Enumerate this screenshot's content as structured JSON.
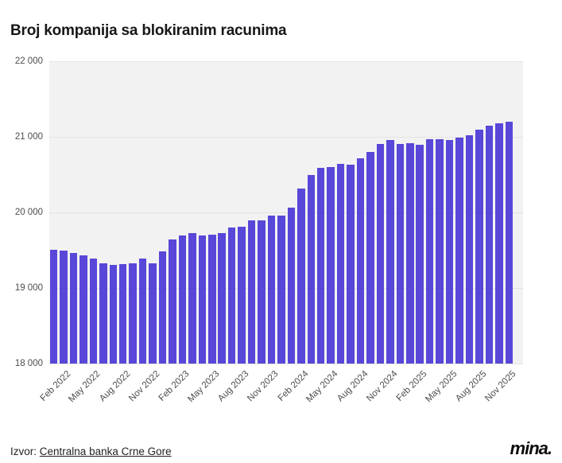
{
  "header": {
    "title": "Broj kompanija sa blokiranim racunima"
  },
  "footer": {
    "source_label": "Izvor:",
    "source_link": "Centralna banka Crne Gore",
    "logo": "mina."
  },
  "colors": {
    "bar": "#5847d8",
    "plot_bg": "#f2f2f2",
    "grid": "#e3e3e3",
    "axis_text": "#4d4d4d",
    "title_text": "#171717"
  },
  "chart_data": {
    "type": "bar",
    "title": "Broj kompanija sa blokiranim racunima",
    "xlabel": "",
    "ylabel": "",
    "ylim": [
      18000,
      22000
    ],
    "grid": true,
    "legend": "none",
    "plot_background": "#f2f2f2",
    "bar_color": "#5847d8",
    "y_ticks": [
      {
        "value": 18000,
        "label": "18 000"
      },
      {
        "value": 19000,
        "label": "19 000"
      },
      {
        "value": 20000,
        "label": "20 000"
      },
      {
        "value": 21000,
        "label": "21 000"
      },
      {
        "value": 22000,
        "label": "22 000"
      }
    ],
    "tick_indices": [
      1,
      4,
      7,
      10,
      13,
      16,
      19,
      22,
      25,
      28,
      31,
      34,
      37,
      40,
      43,
      46
    ],
    "categories": [
      "Jan 2022",
      "Feb 2022",
      "Mar 2022",
      "Apr 2022",
      "May 2022",
      "Jun 2022",
      "Jul 2022",
      "Aug 2022",
      "Sep 2022",
      "Oct 2022",
      "Nov 2022",
      "Dec 2022",
      "Jan 2023",
      "Feb 2023",
      "Mar 2023",
      "Apr 2023",
      "May 2023",
      "Jun 2023",
      "Jul 2023",
      "Aug 2023",
      "Sep 2023",
      "Oct 2023",
      "Nov 2023",
      "Dec 2023",
      "Jan 2024",
      "Feb 2024",
      "Mar 2024",
      "Apr 2024",
      "May 2024",
      "Jun 2024",
      "Jul 2024",
      "Aug 2024",
      "Sep 2024",
      "Oct 2024",
      "Nov 2024",
      "Dec 2024",
      "Jan 2025",
      "Feb 2025",
      "Mar 2025",
      "Apr 2025",
      "May 2025",
      "Jun 2025",
      "Jul 2025",
      "Aug 2025",
      "Sep 2025",
      "Oct 2025",
      "Nov 2025"
    ],
    "values": [
      19510,
      19500,
      19465,
      19435,
      19390,
      19330,
      19305,
      19315,
      19330,
      19390,
      19330,
      19480,
      19640,
      19690,
      19730,
      19700,
      19710,
      19730,
      19795,
      19810,
      19900,
      19890,
      19960,
      19955,
      20065,
      20320,
      20500,
      20590,
      20605,
      20640,
      20635,
      20720,
      20800,
      20905,
      20960,
      20910,
      20920,
      20890,
      20965,
      20970,
      20955,
      20985,
      21025,
      21100,
      21150,
      21175,
      21195
    ]
  }
}
